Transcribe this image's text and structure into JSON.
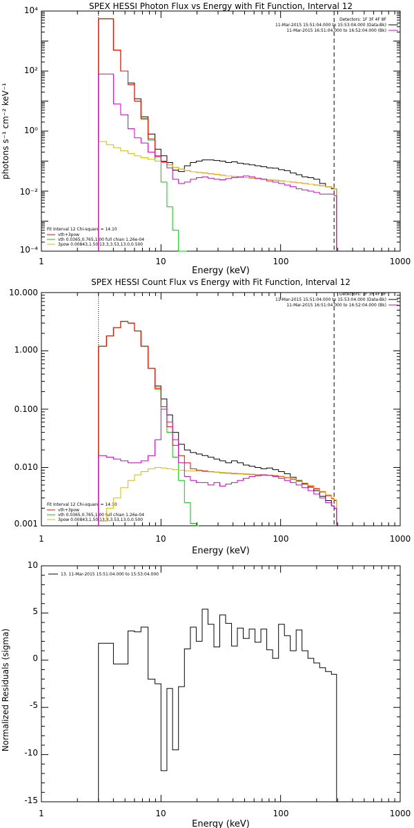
{
  "chart_data": [
    {
      "type": "line",
      "title": "SPEX HESSI Photon Flux vs Energy with Fit Function, Interval 12",
      "xlabel": "Energy (keV)",
      "ylabel": "photons s⁻¹ cm⁻² keV⁻¹",
      "xscale": "log",
      "yscale": "log",
      "xlim": [
        1,
        1000
      ],
      "ylim": [
        0.0001,
        10000
      ],
      "xticks": [
        "1",
        "10",
        "100",
        "1000"
      ],
      "yticks": [
        "10⁻⁴",
        "10⁻²",
        "10⁰",
        "10²",
        "10⁴"
      ],
      "vlines": [
        {
          "x": 3,
          "style": "dotted"
        },
        {
          "x": 280,
          "style": "dashed"
        }
      ],
      "legend_top": [
        "Detectors: 1F 3F 4F 8F",
        "11-Mar-2015 15:51:04.000 to 15:53:04.000 (Data-Bk)",
        "11-Mar-2015 16:51:04.000 to 16:52:04.000 (Bk)"
      ],
      "legend_bottom": [
        "Fit Interval 12   Chi-square = 14.10",
        "vth+3pow",
        "vth 0.0365,0.765,1.00  full chian 1.26e-04",
        "3pow 0.00843,1.50,13.3,3.53,13.0,0.500"
      ],
      "colors": {
        "data": "#000000",
        "total": "#ff0000",
        "thermal": "#00cc00",
        "nonthermal": "#ddbb00",
        "bkg": "#cc00cc"
      },
      "series": [
        {
          "key": "data",
          "x": [
            3.0,
            3.5,
            4.0,
            4.6,
            5.3,
            6.0,
            6.8,
            7.8,
            8.9,
            10.0,
            11.2,
            12.5,
            14.0,
            15.7,
            17.6,
            19.7,
            22.1,
            24.7,
            27.7,
            31.0,
            34.7,
            38.9,
            43.5,
            48.7,
            54.6,
            61.1,
            68.4,
            76.6,
            85.8,
            96.1,
            107.6,
            120.5,
            134.9,
            151.1,
            169.2,
            189.5,
            212.2,
            237.6,
            266.1,
            280.0
          ],
          "y": [
            5500,
            5500,
            500,
            100,
            40,
            12,
            3.0,
            0.8,
            0.25,
            0.15,
            0.09,
            0.05,
            0.045,
            0.07,
            0.09,
            0.1,
            0.11,
            0.11,
            0.105,
            0.1,
            0.09,
            0.095,
            0.085,
            0.08,
            0.075,
            0.07,
            0.065,
            0.06,
            0.058,
            0.052,
            0.048,
            0.04,
            0.035,
            0.03,
            0.028,
            0.025,
            0.018,
            0.014,
            0.012,
            0.012
          ]
        },
        {
          "key": "thermal",
          "x": [
            3.0,
            3.5,
            4.0,
            4.6,
            5.3,
            6.0,
            6.8,
            7.8,
            8.9,
            10.0,
            11.2,
            12.5,
            14.0,
            15.7
          ],
          "y": [
            5500,
            5500,
            500,
            100,
            35,
            10,
            2.5,
            0.5,
            0.1,
            0.02,
            0.003,
            0.0005,
            8e-05,
            1e-05
          ]
        },
        {
          "key": "total",
          "x": [
            3.0,
            3.5,
            4.0,
            4.6,
            5.3,
            6.0,
            6.8,
            7.8,
            8.9,
            10.0,
            11.2,
            12.5,
            14.0,
            15.7,
            17.6,
            19.7,
            22.1,
            24.7,
            27.7,
            31.0,
            34.7,
            38.9,
            43.5,
            48.7,
            54.6,
            61.1,
            68.4,
            76.6,
            85.8,
            96.1,
            107.6,
            120.5,
            134.9,
            151.1,
            169.2,
            189.5,
            212.2,
            237.6,
            266.1,
            280.0
          ],
          "y": [
            5500,
            5500,
            500,
            100,
            35,
            10,
            2.6,
            0.55,
            0.14,
            0.095,
            0.075,
            0.062,
            0.054,
            0.048,
            0.044,
            0.042,
            0.04,
            0.038,
            0.036,
            0.034,
            0.032,
            0.031,
            0.029,
            0.028,
            0.027,
            0.026,
            0.025,
            0.024,
            0.023,
            0.022,
            0.021,
            0.02,
            0.019,
            0.018,
            0.017,
            0.016,
            0.015,
            0.014,
            0.013,
            0.012
          ]
        },
        {
          "key": "nonthermal",
          "x": [
            3.0,
            3.5,
            4.0,
            4.6,
            5.3,
            6.0,
            6.8,
            7.8,
            8.9,
            10.0,
            11.2,
            12.5,
            14.0,
            15.7,
            17.6,
            19.7,
            22.1,
            24.7,
            27.7,
            31.0,
            34.7,
            38.9,
            43.5,
            48.7,
            54.6,
            61.1,
            68.4,
            76.6,
            85.8,
            96.1,
            107.6,
            120.5,
            134.9,
            151.1,
            169.2,
            189.5,
            212.2,
            237.6,
            266.1,
            280.0
          ],
          "y": [
            0.45,
            0.35,
            0.28,
            0.22,
            0.18,
            0.15,
            0.13,
            0.115,
            0.1,
            0.09,
            0.075,
            0.062,
            0.054,
            0.048,
            0.044,
            0.042,
            0.04,
            0.038,
            0.036,
            0.034,
            0.032,
            0.031,
            0.029,
            0.028,
            0.027,
            0.026,
            0.025,
            0.024,
            0.023,
            0.022,
            0.021,
            0.02,
            0.019,
            0.018,
            0.017,
            0.016,
            0.015,
            0.014,
            0.013,
            0.012
          ]
        },
        {
          "key": "bkg",
          "x": [
            3.0,
            3.5,
            4.0,
            4.6,
            5.3,
            6.0,
            6.8,
            7.8,
            8.9,
            10.0,
            11.2,
            12.5,
            14.0,
            15.7,
            17.6,
            19.7,
            22.1,
            24.7,
            27.7,
            31.0,
            34.7,
            38.9,
            43.5,
            48.7,
            54.6,
            61.1,
            68.4,
            76.6,
            85.8,
            96.1,
            107.6,
            120.5,
            134.9,
            151.1,
            169.2,
            189.5,
            212.2,
            237.6,
            266.1,
            280.0
          ],
          "y": [
            80,
            80,
            8,
            3.5,
            1.2,
            0.6,
            0.4,
            0.2,
            0.15,
            0.1,
            0.06,
            0.025,
            0.018,
            0.02,
            0.025,
            0.028,
            0.03,
            0.027,
            0.025,
            0.024,
            0.026,
            0.028,
            0.03,
            0.032,
            0.03,
            0.027,
            0.025,
            0.022,
            0.02,
            0.018,
            0.016,
            0.014,
            0.012,
            0.011,
            0.01,
            0.009,
            0.008,
            0.008,
            0.008,
            0.007
          ]
        }
      ]
    },
    {
      "type": "line",
      "title": "SPEX HESSI Count Flux vs Energy with Fit Function, Interval 12",
      "xlabel": "Energy (keV)",
      "ylabel": "",
      "xscale": "log",
      "yscale": "log",
      "xlim": [
        1,
        1000
      ],
      "ylim": [
        0.001,
        10
      ],
      "xticks": [
        "1",
        "10",
        "100",
        "1000"
      ],
      "yticks": [
        "0.001",
        "0.010",
        "0.100",
        "1.000",
        "10.000"
      ],
      "vlines": [
        {
          "x": 3,
          "style": "dotted"
        },
        {
          "x": 280,
          "style": "dashed"
        }
      ],
      "legend_top": [
        "Detectors: 1F 3F 4F 8F",
        "11-Mar-2015 15:51:04.000 to 15:53:04.000 (Data-Bk)",
        "11-Mar-2015 16:51:04.000 to 16:52:04.000 (Bk)"
      ],
      "legend_bottom": [
        "Fit Interval 12   Chi-square = 14.10",
        "vth+3pow",
        "vth 0.0365,0.765,1.00  full chian 1.26e-04",
        "3pow 0.00843,1.50,13.3,3.53,13.0,0.500"
      ],
      "colors": {
        "data": "#000000",
        "total": "#ff0000",
        "thermal": "#00cc00",
        "nonthermal": "#ddbb00",
        "bkg": "#cc00cc"
      },
      "series": [
        {
          "key": "data",
          "x": [
            3.0,
            3.5,
            4.0,
            4.6,
            5.3,
            6.0,
            6.8,
            7.8,
            8.9,
            10.0,
            11.2,
            12.5,
            14.0,
            15.7,
            17.6,
            19.7,
            22.1,
            24.7,
            27.7,
            31.0,
            34.7,
            38.9,
            43.5,
            48.7,
            54.6,
            61.1,
            68.4,
            76.6,
            85.8,
            96.1,
            107.6,
            120.5,
            134.9,
            151.1,
            169.2,
            189.5,
            212.2,
            237.6,
            266.1,
            280.0
          ],
          "y": [
            1.2,
            1.8,
            2.5,
            3.2,
            3.0,
            2.2,
            1.2,
            0.5,
            0.25,
            0.15,
            0.08,
            0.04,
            0.025,
            0.02,
            0.018,
            0.017,
            0.016,
            0.015,
            0.014,
            0.013,
            0.012,
            0.013,
            0.012,
            0.011,
            0.0105,
            0.01,
            0.0095,
            0.0098,
            0.0092,
            0.0085,
            0.0078,
            0.0068,
            0.006,
            0.0052,
            0.0046,
            0.004,
            0.0032,
            0.0027,
            0.0022,
            0.002
          ]
        },
        {
          "key": "thermal",
          "x": [
            3.0,
            3.5,
            4.0,
            4.6,
            5.3,
            6.0,
            6.8,
            7.8,
            8.9,
            10.0,
            11.2,
            12.5,
            14.0,
            15.7,
            17.6,
            19.7
          ],
          "y": [
            1.2,
            1.8,
            2.5,
            3.2,
            3.0,
            2.2,
            1.2,
            0.5,
            0.22,
            0.1,
            0.04,
            0.015,
            0.006,
            0.0025,
            0.0011,
            0.0004
          ]
        },
        {
          "key": "total",
          "x": [
            3.0,
            3.5,
            4.0,
            4.6,
            5.3,
            6.0,
            6.8,
            7.8,
            8.9,
            10.0,
            11.2,
            12.5,
            14.0,
            15.7,
            17.6,
            19.7,
            22.1,
            24.7,
            27.7,
            31.0,
            34.7,
            38.9,
            43.5,
            48.7,
            54.6,
            61.1,
            68.4,
            76.6,
            85.8,
            96.1,
            107.6,
            120.5,
            134.9,
            151.1,
            169.2,
            189.5,
            212.2,
            237.6,
            266.1,
            280.0
          ],
          "y": [
            1.2,
            1.8,
            2.5,
            3.2,
            3.0,
            2.2,
            1.2,
            0.5,
            0.23,
            0.11,
            0.05,
            0.024,
            0.016,
            0.012,
            0.0095,
            0.009,
            0.0087,
            0.0085,
            0.0083,
            0.0081,
            0.008,
            0.0079,
            0.0078,
            0.0077,
            0.0076,
            0.0075,
            0.0074,
            0.0073,
            0.0072,
            0.007,
            0.0067,
            0.0063,
            0.0058,
            0.0053,
            0.0048,
            0.0043,
            0.0038,
            0.0033,
            0.0029,
            0.0027
          ]
        },
        {
          "key": "nonthermal",
          "x": [
            3.0,
            3.5,
            4.0,
            4.6,
            5.3,
            6.0,
            6.8,
            7.8,
            8.9,
            10.0,
            11.2,
            12.5,
            14.0,
            15.7,
            17.6,
            19.7,
            22.1,
            24.7,
            27.7,
            31.0,
            34.7,
            38.9,
            43.5,
            48.7,
            54.6,
            61.1,
            68.4,
            76.6,
            85.8,
            96.1,
            107.6,
            120.5,
            134.9,
            151.1,
            169.2,
            189.5,
            212.2,
            237.6,
            266.1,
            280.0
          ],
          "y": [
            0.0012,
            0.002,
            0.003,
            0.0045,
            0.006,
            0.0075,
            0.0085,
            0.0095,
            0.01,
            0.0098,
            0.0095,
            0.0092,
            0.009,
            0.0088,
            0.0087,
            0.0086,
            0.0085,
            0.0084,
            0.0083,
            0.0082,
            0.0081,
            0.008,
            0.0079,
            0.0078,
            0.0077,
            0.0076,
            0.0075,
            0.0074,
            0.0073,
            0.0071,
            0.0068,
            0.0064,
            0.0059,
            0.0054,
            0.0049,
            0.0044,
            0.0039,
            0.0034,
            0.003,
            0.0028
          ]
        },
        {
          "key": "bkg",
          "x": [
            3.0,
            3.5,
            4.0,
            4.6,
            5.3,
            6.0,
            6.8,
            7.8,
            8.9,
            10.0,
            11.2,
            12.5,
            14.0,
            15.7,
            17.6,
            19.7,
            22.1,
            24.7,
            27.7,
            31.0,
            34.7,
            38.9,
            43.5,
            48.7,
            54.6,
            61.1,
            68.4,
            76.6,
            85.8,
            96.1,
            107.6,
            120.5,
            134.9,
            151.1,
            169.2,
            189.5,
            212.2,
            237.6,
            266.1,
            280.0
          ],
          "y": [
            0.016,
            0.015,
            0.014,
            0.013,
            0.012,
            0.012,
            0.013,
            0.016,
            0.03,
            0.1,
            0.06,
            0.03,
            0.012,
            0.007,
            0.006,
            0.0055,
            0.0055,
            0.005,
            0.0055,
            0.0048,
            0.0052,
            0.0055,
            0.006,
            0.0065,
            0.007,
            0.0072,
            0.0075,
            0.0073,
            0.007,
            0.0065,
            0.006,
            0.0055,
            0.005,
            0.0045,
            0.004,
            0.0035,
            0.003,
            0.0025,
            0.0022,
            0.002
          ]
        }
      ]
    },
    {
      "type": "line",
      "title": "",
      "xlabel": "Energy (keV)",
      "ylabel": "Normalized Residuals (sigma)",
      "xscale": "log",
      "yscale": "linear",
      "xlim": [
        1,
        1000
      ],
      "ylim": [
        -15,
        10
      ],
      "xticks": [
        "1",
        "10",
        "100",
        "1000"
      ],
      "yticks": [
        "-15",
        "-10",
        "-5",
        "0",
        "5",
        "10"
      ],
      "legend": "13. 11-Mar-2015 15:51:04.000 to 15:53:04.000",
      "series": [
        {
          "key": "residuals",
          "x": [
            3.0,
            3.5,
            4.0,
            4.6,
            5.3,
            6.0,
            6.8,
            7.8,
            8.9,
            10.0,
            11.2,
            12.5,
            14.0,
            15.7,
            17.6,
            19.7,
            22.1,
            24.7,
            27.7,
            31.0,
            34.7,
            38.9,
            43.5,
            48.7,
            54.6,
            61.1,
            68.4,
            76.6,
            85.8,
            96.1,
            107.6,
            120.5,
            134.9,
            151.1,
            169.2,
            189.5,
            212.2,
            237.6,
            266.1,
            280.0
          ],
          "y": [
            1.8,
            1.8,
            -0.4,
            -0.4,
            3.1,
            3.0,
            3.5,
            -2.0,
            -2.5,
            -11.7,
            -3.0,
            -9.5,
            -2.8,
            1.2,
            3.5,
            2.0,
            5.4,
            3.8,
            1.4,
            4.8,
            3.9,
            1.5,
            3.4,
            2.3,
            3.3,
            1.9,
            3.3,
            1.1,
            0.2,
            3.8,
            2.6,
            1.0,
            3.2,
            1.0,
            0.2,
            -0.3,
            -0.8,
            -1.2,
            -1.5,
            -1.5
          ]
        }
      ]
    }
  ]
}
